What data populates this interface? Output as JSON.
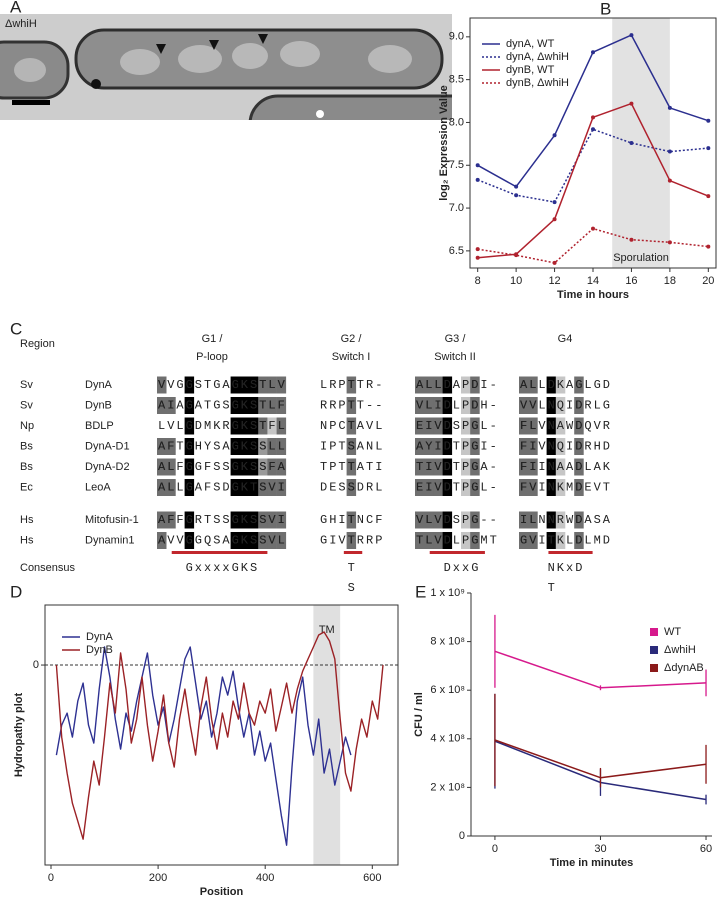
{
  "panel_labels": [
    "A",
    "B",
    "C",
    "D",
    "E"
  ],
  "micrograph": {
    "label": "ΔwhiH"
  },
  "chart_data": [
    {
      "type": "line",
      "x": [
        8,
        10,
        12,
        14,
        16,
        18,
        20
      ],
      "xlim": [
        7.6,
        20.4
      ],
      "xticks": [
        8,
        10,
        12,
        14,
        16,
        18,
        20
      ],
      "ylim": [
        6.3,
        9.22
      ],
      "yticks": [
        6.5,
        {
          "value": 7,
          "label": "7.0"
        },
        7.5,
        {
          "value": 8,
          "label": "8.0"
        },
        8.5,
        {
          "value": 9,
          "label": "9.0"
        }
      ],
      "x_label": "Time in hours",
      "y_label": "log₂ Expression Value",
      "shaded_region": {
        "x": [
          15,
          18
        ],
        "label": "Sporulation",
        "color": "#e2e2e2"
      },
      "legend": "upper left",
      "markers": true,
      "series": [
        {
          "name": "dynA, WT",
          "color": "#2b2f8f",
          "style": "solid",
          "values": [
            7.5,
            7.25,
            7.85,
            8.82,
            9.02,
            8.17,
            8.02
          ]
        },
        {
          "name": "dynA, ΔwhiH",
          "color": "#2b2f8f",
          "style": "dotted",
          "values": [
            7.33,
            7.15,
            7.07,
            7.92,
            7.76,
            7.66,
            7.7
          ]
        },
        {
          "name": "dynB, WT",
          "color": "#b0222e",
          "style": "solid",
          "values": [
            6.42,
            6.46,
            6.87,
            8.06,
            8.22,
            7.32,
            7.14
          ]
        },
        {
          "name": "dynB, ΔwhiH",
          "color": "#b0222e",
          "style": "dotted",
          "values": [
            6.52,
            6.45,
            6.36,
            6.76,
            6.63,
            6.6,
            6.55
          ]
        }
      ]
    },
    {
      "type": "line",
      "x": [
        10,
        20,
        30,
        40,
        50,
        60,
        70,
        80,
        90,
        100,
        110,
        120,
        130,
        140,
        150,
        160,
        170,
        180,
        190,
        200,
        210,
        220,
        230,
        240,
        250,
        260,
        270,
        280,
        290,
        300,
        310,
        320,
        330,
        340,
        350,
        360,
        370,
        380,
        390,
        400,
        410,
        420,
        430,
        440,
        450,
        460,
        470,
        480,
        490,
        500,
        510,
        520,
        530,
        540,
        550,
        560,
        570,
        580,
        590,
        600,
        610,
        620
      ],
      "xlim": [
        -11.2,
        648
      ],
      "xticks": [
        0,
        200,
        400,
        600
      ],
      "ylim": [
        -3.33,
        1.0
      ],
      "yticks": [
        0
      ],
      "grid": "dashed",
      "x_label": "Position",
      "y_label": "Hydropathy plot",
      "shaded_region": {
        "x": [
          490,
          540
        ],
        "label": "TM",
        "color": "#e0e0e0"
      },
      "legend": "upper left",
      "markers": false,
      "series": [
        {
          "name": "DynA",
          "color": "#2e3192",
          "style": "solid",
          "values": [
            -1.5,
            -1.0,
            -0.8,
            -1.2,
            -0.6,
            -0.3,
            -1.0,
            -1.3,
            -0.4,
            0.3,
            -0.2,
            -0.9,
            -1.4,
            -0.8,
            -1.1,
            -0.6,
            -0.2,
            0.2,
            -0.5,
            -1.0,
            -0.7,
            -1.3,
            -0.9,
            -0.4,
            0.1,
            0.3,
            -0.3,
            -0.9,
            -0.6,
            -1.2,
            -0.8,
            -0.2,
            -0.5,
            -0.1,
            -0.7,
            -1.2,
            -0.8,
            -1.5,
            -1.1,
            -1.6,
            -1.3,
            -1.9,
            -2.5,
            -3.0,
            -1.7,
            -0.6,
            -0.2,
            -1.0,
            -1.5,
            -0.9,
            -1.8,
            -1.4,
            -2.0,
            -1.6,
            -1.2,
            -1.5,
            null,
            null,
            null,
            null,
            null,
            null
          ]
        },
        {
          "name": "DynB",
          "color": "#9b2226",
          "style": "solid",
          "values": [
            0,
            -1.2,
            -1.8,
            -2.3,
            -2.6,
            -2.9,
            -2.2,
            -1.6,
            -2.0,
            -1.2,
            -0.3,
            -0.8,
            0.2,
            -0.4,
            -1.3,
            -0.9,
            -0.2,
            -1.0,
            -1.6,
            -1.1,
            -0.5,
            -1.3,
            -1.7,
            -0.9,
            -0.4,
            -1.0,
            -1.5,
            -0.7,
            -0.2,
            -0.9,
            -1.4,
            -0.8,
            -1.2,
            -0.6,
            -0.9,
            -0.3,
            -0.8,
            -1.0,
            -0.6,
            -0.8,
            -0.4,
            -1.1,
            -0.7,
            -0.3,
            -0.8,
            -0.4,
            -0.1,
            0.1,
            0.3,
            0.5,
            0.55,
            0.4,
            0.1,
            -0.9,
            -1.8,
            -2.1,
            -1.4,
            -0.9,
            -1.2,
            -0.6,
            -0.9,
            0
          ]
        }
      ]
    },
    {
      "type": "line",
      "x": [
        0,
        30,
        60
      ],
      "xlim": [
        -6.8,
        61.7
      ],
      "xticks": [
        0,
        30,
        60
      ],
      "ylim": [
        0,
        1000000000
      ],
      "yticks": [
        0,
        {
          "value": 200000000,
          "label": "2 x 10⁸"
        },
        {
          "value": 400000000,
          "label": "4 x 10⁸"
        },
        {
          "value": 600000000,
          "label": "6 x 10⁸"
        },
        {
          "value": 800000000,
          "label": "8 x 10⁸"
        },
        {
          "value": 1000000000,
          "label": "1 x 10⁹"
        }
      ],
      "x_label": "Time in minutes",
      "y_label": "CFU / ml",
      "legend": "upper right",
      "legend_symbol": "square",
      "markers": false,
      "series": [
        {
          "name": "WT",
          "color": "#d6198c",
          "style": "solid",
          "values": [
            760000000,
            610000000,
            630000000
          ],
          "errors": [
            150000000,
            10000000,
            55000000
          ]
        },
        {
          "name": "ΔwhiH",
          "color": "#2a2a7a",
          "style": "solid",
          "values": [
            390000000,
            220000000,
            150000000
          ],
          "errors": [
            195000000,
            55000000,
            20000000
          ]
        },
        {
          "name": "ΔdynAB",
          "color": "#8b1a1a",
          "style": "solid",
          "values": [
            395000000,
            240000000,
            295000000
          ],
          "errors": [
            190000000,
            40000000,
            80000000
          ]
        }
      ]
    }
  ],
  "alignment": {
    "header_label": "Region",
    "regions": [
      {
        "lines": [
          "G1 /",
          "P-loop"
        ]
      },
      {
        "lines": [
          "G2 /",
          "Switch I"
        ]
      },
      {
        "lines": [
          "G3 /",
          "Switch II"
        ]
      },
      {
        "lines": [
          "G4"
        ]
      }
    ],
    "rows": [
      {
        "species": "Sv",
        "protein": "DynA",
        "blocks": [
          "VVGGSTGAGKSTLV",
          "LRPTTR-",
          "ALLDAPDI-",
          "ALLDKAGLGD"
        ],
        "shading": [
          "d..k....kkkddd",
          "...d...",
          "dddk.ld..",
          "dd.kl.d..."
        ]
      },
      {
        "species": "Sv",
        "protein": "DynB",
        "blocks": [
          "AIAGATGSGKSTLF",
          "RRPTT--",
          "VLIDLPDH-",
          "VVLNQIDRLG"
        ],
        "shading": [
          "dd.k....kkkddd",
          "...d...",
          "dddk.ld..",
          "dd.kl.d..."
        ]
      },
      {
        "species": "Np",
        "protein": "BDLP",
        "blocks": [
          "LVLGDMKRGKSTFL",
          "NPCTAVL",
          "EIVDSPGL-",
          "FLVNAWDQVR"
        ],
        "shading": [
          "...k....kkkdld",
          "...d...",
          "dddk.ld..",
          "dd.kl.d..."
        ]
      },
      {
        "species": "Bs",
        "protein": "DynA-D1",
        "blocks": [
          "AFTGHYSAGKSSLL",
          "IPTSANL",
          "AYIDTPGI-",
          "FIVNQIDRHD"
        ],
        "shading": [
          "dd.k....kkkmdd",
          "...d...",
          "dddk.ld..",
          "dd.kl.d..."
        ]
      },
      {
        "species": "Bs",
        "protein": "DynA-D2",
        "blocks": [
          "ALFGGFSSGKSSFA",
          "TPTTATI",
          "TIVDTPGA-",
          "FIINAADLAK"
        ],
        "shading": [
          "dd.k....kkkmdd",
          "...d...",
          "dddk.ld..",
          "dd.kl.d..."
        ]
      },
      {
        "species": "Ec",
        "protein": "LeoA",
        "blocks": [
          "ALLGAFSDGKTSVI",
          "DESSDRL",
          "EIVDTPGL-",
          "FVINKMDEVT"
        ],
        "shading": [
          "dd.k....kkkddd",
          "...d...",
          "dddk.ld..",
          "dd.kl.d..."
        ]
      },
      {
        "species": "Hs",
        "protein": "Mitofusin-1",
        "blocks": [
          "AFFGRTSSGKSSVI",
          "GHITNCF",
          "VLVDSPG--",
          "ILNNRWDASA"
        ],
        "shading": [
          "dd.k....kkkddd",
          "...d...",
          "dddk.ld..",
          "dd.kl.d..."
        ]
      },
      {
        "species": "Hs",
        "protein": "Dynamin1",
        "blocks": [
          "AVVGGQSAGKSSVL",
          "GIVTRRP",
          "TLVDLPGMT",
          "GVITKLDLMD"
        ],
        "shading": [
          "d..k....kkkddd",
          "...d...",
          "dddk.ld..",
          "dd.kl.d..."
        ]
      }
    ],
    "consensus": {
      "label": "Consensus",
      "blocks": [
        [
          "GxxxxGKS"
        ],
        [
          "T",
          "S"
        ],
        [
          "DxxG"
        ],
        [
          "NKxD",
          "T"
        ]
      ]
    }
  }
}
